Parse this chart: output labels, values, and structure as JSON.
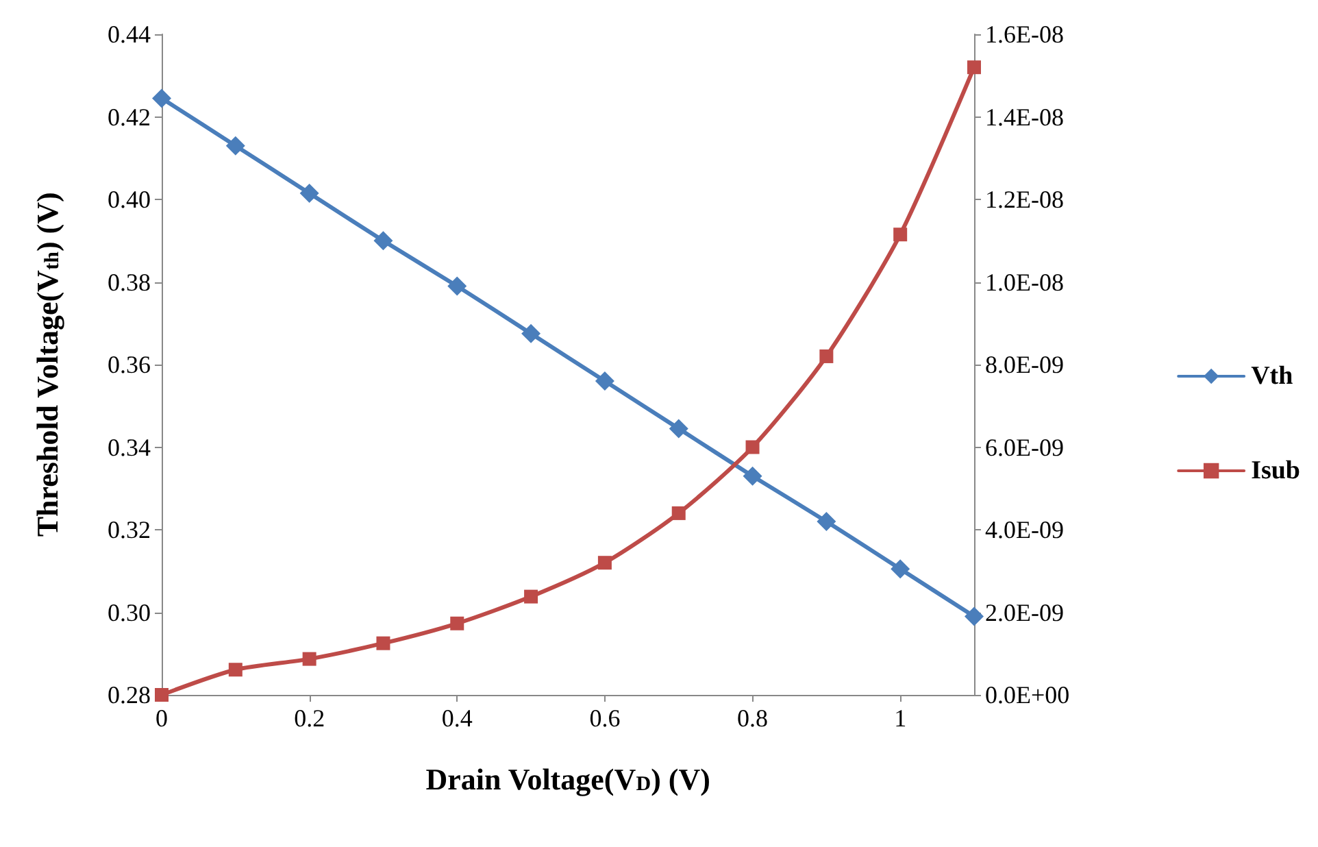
{
  "chart_data": {
    "type": "line",
    "xlabel": "Drain Voltage(V$_{D}$) (V)",
    "ylabel": "Threshold Voltage(V$_{th}$) (V)",
    "x": [
      0,
      0.1,
      0.2,
      0.3,
      0.4,
      0.5,
      0.6,
      0.7,
      0.8,
      0.9,
      1.0,
      1.1
    ],
    "series": [
      {
        "name": "Vth",
        "color": "#4a7ebb",
        "marker": "diamond",
        "values": [
          0.4245,
          0.413,
          0.4015,
          0.39,
          0.379,
          0.3675,
          0.356,
          0.3445,
          0.333,
          0.322,
          0.3105,
          0.299
        ]
      },
      {
        "name": "Isub",
        "color": "#be4b48",
        "marker": "square",
        "axis": "y2",
        "values": [
          0,
          6.1e-10,
          8.7e-10,
          1.25e-09,
          1.73e-09,
          2.38e-09,
          3.2e-09,
          4.4e-09,
          6e-09,
          8.2e-09,
          1.115e-08,
          1.52e-08
        ]
      }
    ],
    "xlim": [
      0,
      1.1
    ],
    "xticks": [
      0,
      0.2,
      0.4,
      0.6,
      0.8,
      1
    ],
    "ylim": [
      0.28,
      0.44
    ],
    "yticks": [
      {
        "value": 0.28,
        "label": "0.28"
      },
      {
        "value": 0.3,
        "label": "0.30"
      },
      {
        "value": 0.32,
        "label": "0.32"
      },
      {
        "value": 0.34,
        "label": "0.34"
      },
      {
        "value": 0.36,
        "label": "0.36"
      },
      {
        "value": 0.38,
        "label": "0.38"
      },
      {
        "value": 0.4,
        "label": "0.40"
      },
      {
        "value": 0.42,
        "label": "0.42"
      },
      {
        "value": 0.44,
        "label": "0.44"
      }
    ],
    "y2lim": [
      0,
      1.6e-08
    ],
    "y2ticks": [
      {
        "value": 0,
        "label": "0.0E+00"
      },
      {
        "value": 2e-09,
        "label": "2.0E-09"
      },
      {
        "value": 4e-09,
        "label": "4.0E-09"
      },
      {
        "value": 6e-09,
        "label": "6.0E-09"
      },
      {
        "value": 8e-09,
        "label": "8.0E-09"
      },
      {
        "value": 1e-08,
        "label": "1.0E-08"
      },
      {
        "value": 1.2e-08,
        "label": "1.2E-08"
      },
      {
        "value": 1.4e-08,
        "label": "1.4E-08"
      },
      {
        "value": 1.6e-08,
        "label": "1.6E-08"
      }
    ],
    "grid": false,
    "legend": "right",
    "line_style": "solid"
  }
}
